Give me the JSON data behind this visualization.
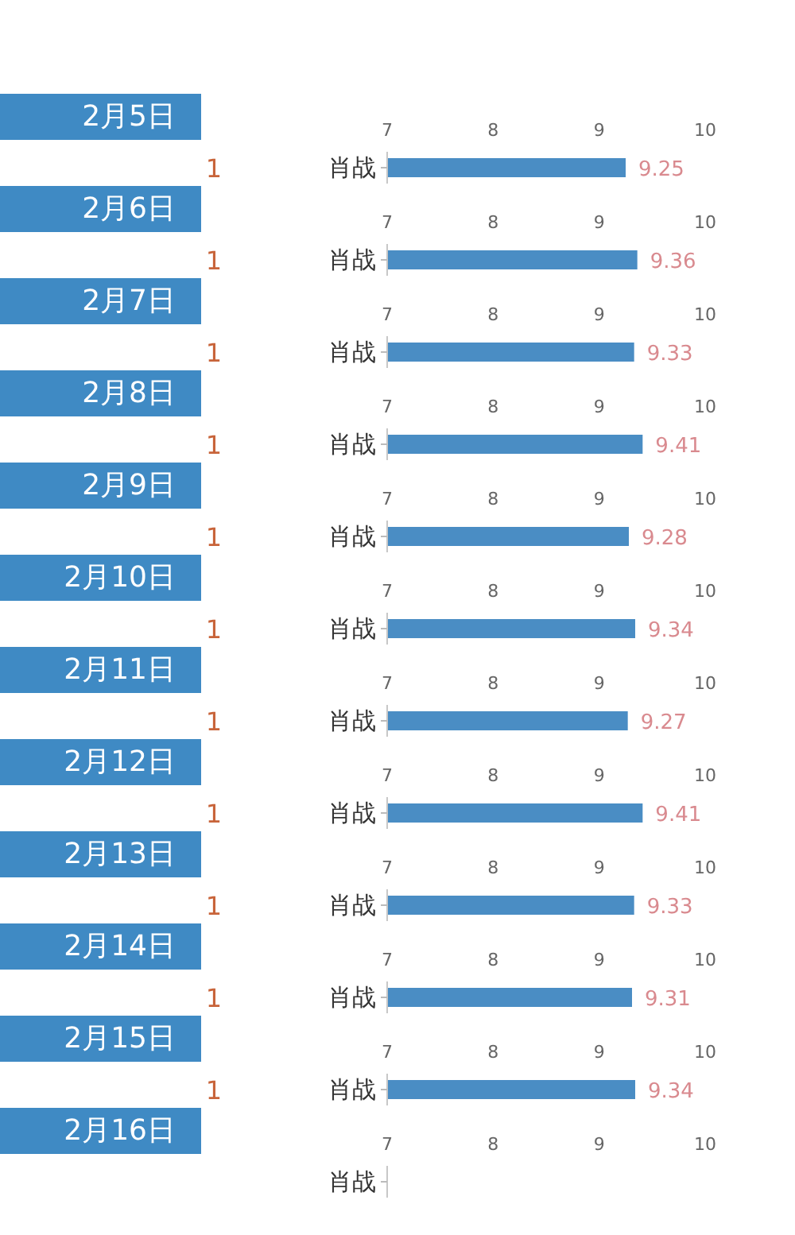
{
  "chart_data": [
    {
      "type": "bar",
      "orientation": "horizontal",
      "title": "2月5日",
      "categories": [
        "肖战"
      ],
      "values": [
        9.25
      ],
      "color": "#4a8dc4",
      "xlim": [
        7,
        10
      ],
      "xticks": [
        7,
        8,
        9,
        10
      ],
      "data_labels": true,
      "annotations": [
        "1"
      ]
    },
    {
      "type": "bar",
      "orientation": "horizontal",
      "title": "2月6日",
      "categories": [
        "肖战"
      ],
      "values": [
        9.36
      ],
      "color": "#4a8dc4",
      "xlim": [
        7,
        10
      ],
      "xticks": [
        7,
        8,
        9,
        10
      ],
      "data_labels": true,
      "annotations": [
        "1"
      ]
    },
    {
      "type": "bar",
      "orientation": "horizontal",
      "title": "2月7日",
      "categories": [
        "肖战"
      ],
      "values": [
        9.33
      ],
      "color": "#4a8dc4",
      "xlim": [
        7,
        10
      ],
      "xticks": [
        7,
        8,
        9,
        10
      ],
      "data_labels": true,
      "annotations": [
        "1"
      ]
    },
    {
      "type": "bar",
      "orientation": "horizontal",
      "title": "2月8日",
      "categories": [
        "肖战"
      ],
      "values": [
        9.41
      ],
      "color": "#4a8dc4",
      "xlim": [
        7,
        10
      ],
      "xticks": [
        7,
        8,
        9,
        10
      ],
      "data_labels": true,
      "annotations": [
        "1"
      ]
    },
    {
      "type": "bar",
      "orientation": "horizontal",
      "title": "2月9日",
      "categories": [
        "肖战"
      ],
      "values": [
        9.28
      ],
      "color": "#4a8dc4",
      "xlim": [
        7,
        10
      ],
      "xticks": [
        7,
        8,
        9,
        10
      ],
      "data_labels": true,
      "annotations": [
        "1"
      ]
    },
    {
      "type": "bar",
      "orientation": "horizontal",
      "title": "2月10日",
      "categories": [
        "肖战"
      ],
      "values": [
        9.34
      ],
      "color": "#4a8dc4",
      "xlim": [
        7,
        10
      ],
      "xticks": [
        7,
        8,
        9,
        10
      ],
      "data_labels": true,
      "annotations": [
        "1"
      ]
    },
    {
      "type": "bar",
      "orientation": "horizontal",
      "title": "2月11日",
      "categories": [
        "肖战"
      ],
      "values": [
        9.27
      ],
      "color": "#4a8dc4",
      "xlim": [
        7,
        10
      ],
      "xticks": [
        7,
        8,
        9,
        10
      ],
      "data_labels": true,
      "annotations": [
        "1"
      ]
    },
    {
      "type": "bar",
      "orientation": "horizontal",
      "title": "2月12日",
      "categories": [
        "肖战"
      ],
      "values": [
        9.41
      ],
      "color": "#4a8dc4",
      "xlim": [
        7,
        10
      ],
      "xticks": [
        7,
        8,
        9,
        10
      ],
      "data_labels": true,
      "annotations": [
        "1"
      ]
    },
    {
      "type": "bar",
      "orientation": "horizontal",
      "title": "2月13日",
      "categories": [
        "肖战"
      ],
      "values": [
        9.33
      ],
      "color": "#4a8dc4",
      "xlim": [
        7,
        10
      ],
      "xticks": [
        7,
        8,
        9,
        10
      ],
      "data_labels": true,
      "annotations": [
        "1"
      ]
    },
    {
      "type": "bar",
      "orientation": "horizontal",
      "title": "2月14日",
      "categories": [
        "肖战"
      ],
      "values": [
        9.31
      ],
      "color": "#4a8dc4",
      "xlim": [
        7,
        10
      ],
      "xticks": [
        7,
        8,
        9,
        10
      ],
      "data_labels": true,
      "annotations": [
        "1"
      ]
    },
    {
      "type": "bar",
      "orientation": "horizontal",
      "title": "2月15日",
      "categories": [
        "肖战"
      ],
      "values": [
        9.34
      ],
      "color": "#4a8dc4",
      "xlim": [
        7,
        10
      ],
      "xticks": [
        7,
        8,
        9,
        10
      ],
      "data_labels": true,
      "annotations": [
        "1"
      ]
    },
    {
      "type": "bar",
      "orientation": "horizontal",
      "title": "2月16日",
      "categories": [
        "肖战"
      ],
      "values": [
        null
      ],
      "xlim": [
        7,
        10
      ],
      "xticks": [
        7,
        8,
        9,
        10
      ]
    }
  ]
}
